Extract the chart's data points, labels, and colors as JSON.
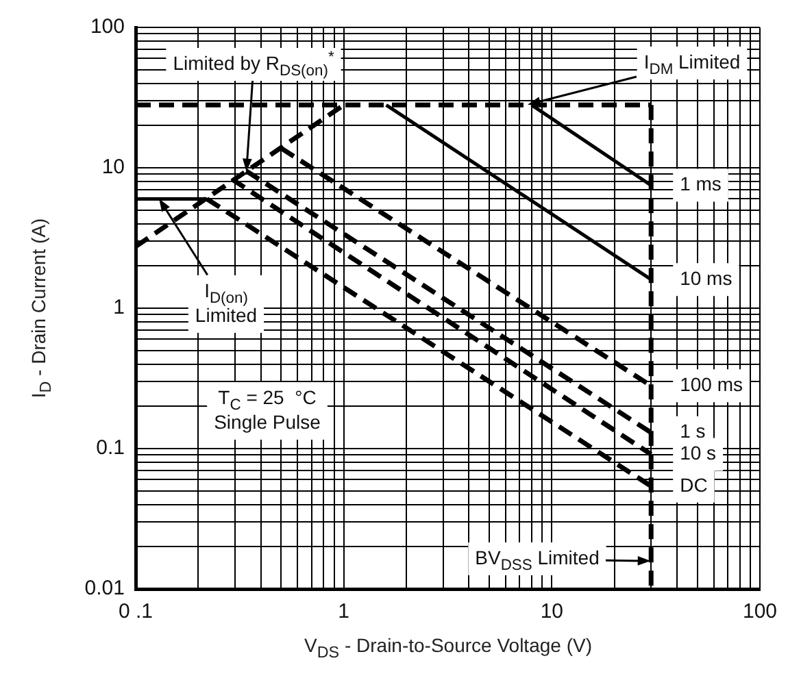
{
  "chart_data": {
    "type": "line",
    "xlabel": "V$_{DS}$ - Drain-to-Source Voltage (V)",
    "ylabel": "I$_{D}$ - Drain Current (A)",
    "log": "xy",
    "grid": true,
    "legend": false,
    "marker": "none",
    "xlim": [
      0.1,
      100
    ],
    "ylim": [
      0.01,
      100
    ],
    "xticks": [
      {
        "value": 0.1,
        "label": "0 .1"
      },
      {
        "value": 0.2,
        "label": null
      },
      {
        "value": 0.3,
        "label": null
      },
      {
        "value": 0.4,
        "label": null
      },
      {
        "value": 0.5,
        "label": null
      },
      {
        "value": 0.6,
        "label": null
      },
      {
        "value": 0.7,
        "label": null
      },
      {
        "value": 0.8,
        "label": null
      },
      {
        "value": 0.9,
        "label": null
      },
      1,
      {
        "value": 2,
        "label": null
      },
      {
        "value": 3,
        "label": null
      },
      {
        "value": 4,
        "label": null
      },
      {
        "value": 5,
        "label": null
      },
      {
        "value": 6,
        "label": null
      },
      {
        "value": 7,
        "label": null
      },
      {
        "value": 8,
        "label": null
      },
      {
        "value": 9,
        "label": null
      },
      10,
      {
        "value": 20,
        "label": null
      },
      {
        "value": 30,
        "label": null
      },
      {
        "value": 40,
        "label": null
      },
      {
        "value": 50,
        "label": null
      },
      {
        "value": 60,
        "label": null
      },
      {
        "value": 70,
        "label": null
      },
      {
        "value": 80,
        "label": null
      },
      {
        "value": 90,
        "label": null
      },
      100
    ],
    "yticks": [
      0.01,
      {
        "value": 0.02,
        "label": null
      },
      {
        "value": 0.03,
        "label": null
      },
      {
        "value": 0.04,
        "label": null
      },
      {
        "value": 0.05,
        "label": null
      },
      {
        "value": 0.06,
        "label": null
      },
      {
        "value": 0.07,
        "label": null
      },
      {
        "value": 0.08,
        "label": null
      },
      {
        "value": 0.09,
        "label": null
      },
      0.1,
      {
        "value": 0.2,
        "label": null
      },
      {
        "value": 0.3,
        "label": null
      },
      {
        "value": 0.4,
        "label": null
      },
      {
        "value": 0.5,
        "label": null
      },
      {
        "value": 0.6,
        "label": null
      },
      {
        "value": 0.7,
        "label": null
      },
      {
        "value": 0.8,
        "label": null
      },
      {
        "value": 0.9,
        "label": null
      },
      1,
      {
        "value": 2,
        "label": null
      },
      {
        "value": 3,
        "label": null
      },
      {
        "value": 4,
        "label": null
      },
      {
        "value": 5,
        "label": null
      },
      {
        "value": 6,
        "label": null
      },
      {
        "value": 7,
        "label": null
      },
      {
        "value": 8,
        "label": null
      },
      {
        "value": 9,
        "label": null
      },
      10,
      {
        "value": 20,
        "label": null
      },
      {
        "value": 30,
        "label": null
      },
      {
        "value": 40,
        "label": null
      },
      {
        "value": 50,
        "label": null
      },
      {
        "value": 60,
        "label": null
      },
      {
        "value": 70,
        "label": null
      },
      {
        "value": 80,
        "label": null
      },
      {
        "value": 90,
        "label": null
      },
      100
    ],
    "series": [
      {
        "color": "#000000",
        "line_style": "dashed",
        "x": [
          0.1,
          1.0
        ],
        "values": [
          2.75,
          28
        ]
      },
      {
        "color": "#000000",
        "line_style": "dashed",
        "x": [
          0.1,
          30
        ],
        "values": [
          28,
          28
        ]
      },
      {
        "color": "#000000",
        "line_style": "dashed",
        "x": [
          30,
          30
        ],
        "values": [
          28,
          0.01
        ]
      },
      {
        "color": "#000000",
        "line_style": "solid",
        "x": [
          0.1,
          0.22
        ],
        "values": [
          6,
          6
        ]
      },
      {
        "name": "1 ms",
        "color": "#000000",
        "line_style": "solid",
        "x": [
          8,
          30
        ],
        "values": [
          28,
          7.5
        ]
      },
      {
        "name": "10 ms",
        "color": "#000000",
        "line_style": "solid",
        "x": [
          1.6,
          30
        ],
        "values": [
          28,
          1.6
        ]
      },
      {
        "name": "100 ms",
        "color": "#000000",
        "line_style": "dashed",
        "x": [
          0.5,
          30
        ],
        "values": [
          13.8,
          0.28
        ]
      },
      {
        "name": "1 s",
        "color": "#000000",
        "line_style": "dashed",
        "x": [
          0.34,
          30
        ],
        "values": [
          9.5,
          0.13
        ]
      },
      {
        "name": "10 s",
        "color": "#000000",
        "line_style": "dashed",
        "x": [
          0.29,
          30
        ],
        "values": [
          8.3,
          0.091
        ]
      },
      {
        "name": "DC",
        "color": "#000000",
        "line_style": "dashed",
        "x": [
          0.22,
          30
        ],
        "values": [
          6,
          0.054
        ]
      }
    ],
    "annotations": [
      {
        "text": "Limited by R$_{DS(on)}$$^{*}$",
        "x": 0.34,
        "y": 9.4
      },
      {
        "text": "I$_{DM}$ Limited",
        "x": 7.7,
        "y": 28
      },
      {
        "text": "I$_{D(on)}$\nLimited",
        "x": 0.13,
        "y": 6
      },
      "T$_{C}$ = 25  °C\nSingle Pulse",
      {
        "text": "BV$_{DSS}$ Limited",
        "x": 30,
        "y": 0.016
      }
    ]
  }
}
